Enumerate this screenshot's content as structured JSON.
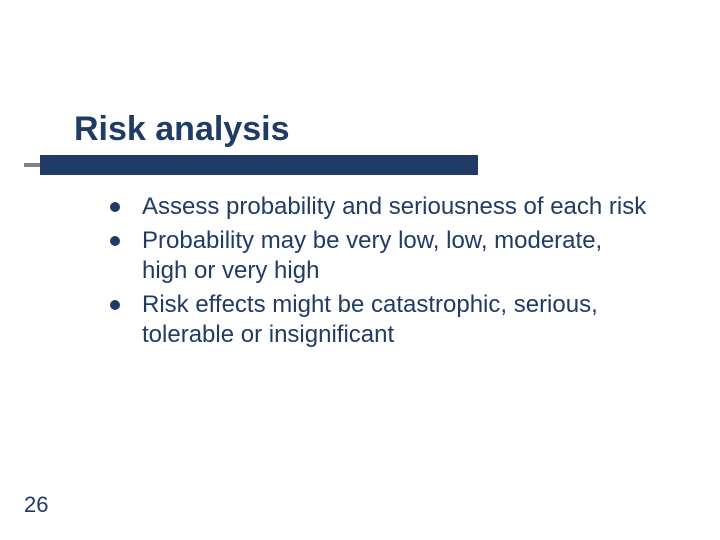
{
  "slide": {
    "title": "Risk analysis",
    "title_color": "#1f3b66",
    "title_fontsize": 34,
    "underline_bar_color": "#1f3b66",
    "underline_stub_color": "#828282",
    "background_color": "#ffffff",
    "bullets": [
      {
        "text": "Assess probability and seriousness of each risk"
      },
      {
        "text": "Probability may be very low, low, moderate, high or very high"
      },
      {
        "text": "Risk effects might be catastrophic, serious, tolerable or insignificant"
      }
    ],
    "bullet_text_color": "#1f3b66",
    "bullet_dot_color": "#1f3b66",
    "bullet_fontsize": 24,
    "page_number": "26",
    "page_number_color": "#1f3b66",
    "page_number_fontsize": 22
  }
}
